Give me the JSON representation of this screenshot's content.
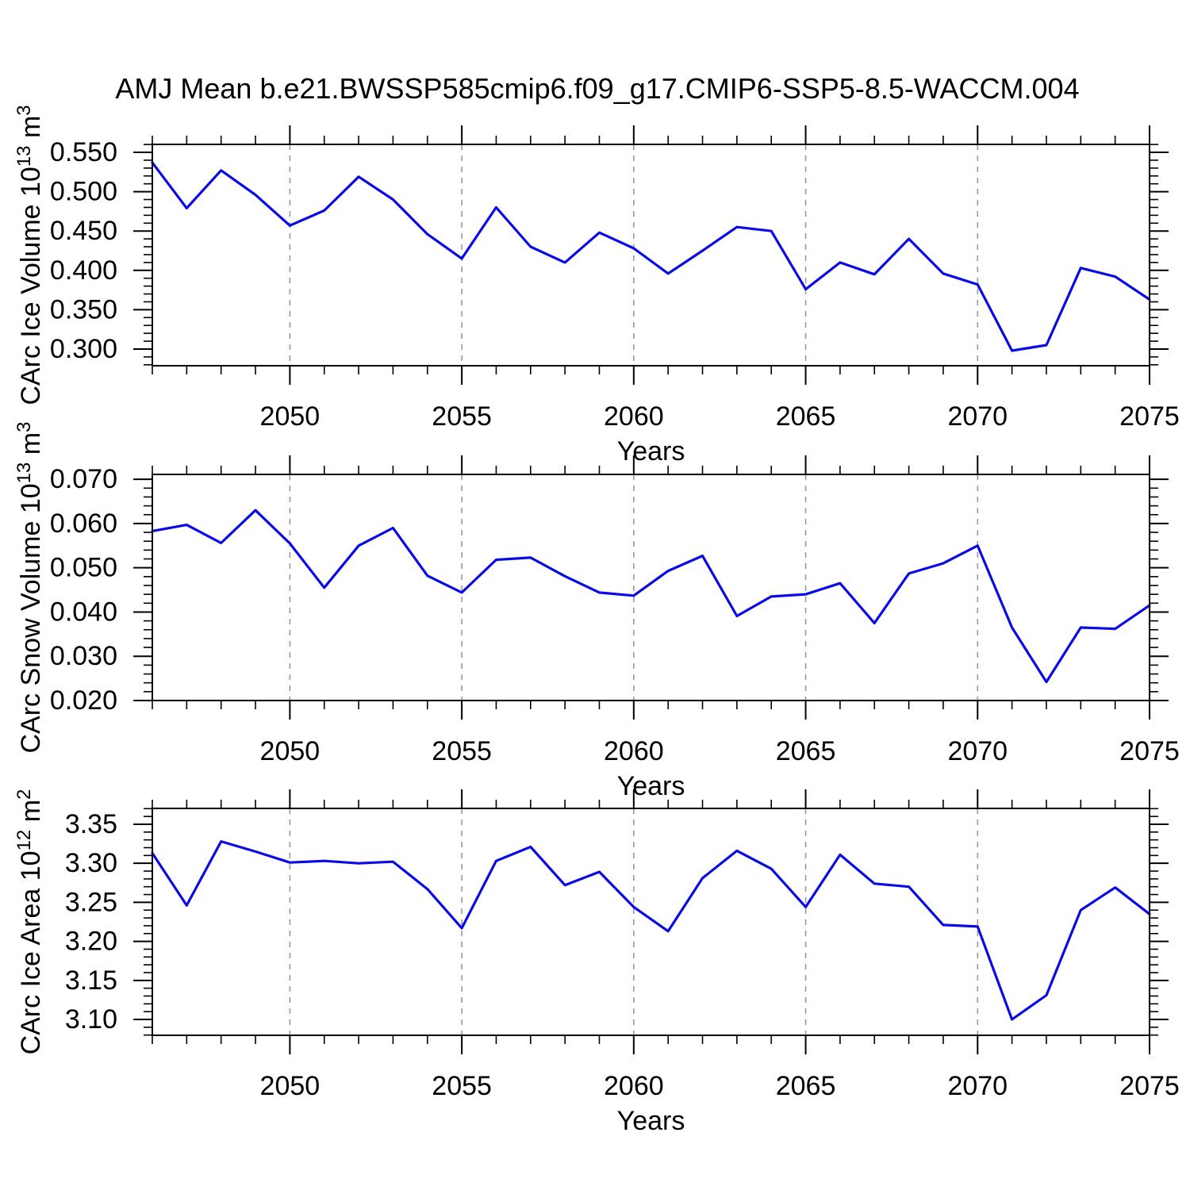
{
  "title": "AMJ Mean b.e21.BWSSP585cmip6.f09_g17.CMIP6-SSP5-8.5-WACCM.004",
  "chart_data": {
    "type": "line",
    "xlabel": "Years",
    "x": [
      2046,
      2047,
      2048,
      2049,
      2050,
      2051,
      2052,
      2053,
      2054,
      2055,
      2056,
      2057,
      2058,
      2059,
      2060,
      2061,
      2062,
      2063,
      2064,
      2065,
      2066,
      2067,
      2068,
      2069,
      2070,
      2071,
      2072,
      2073,
      2074,
      2075
    ],
    "xlim": [
      2046,
      2075
    ],
    "x_major_ticks": [
      2050,
      2055,
      2060,
      2065,
      2070,
      2075
    ],
    "x_minor_tick_step": 1,
    "x_gridlines": [
      2050,
      2055,
      2060,
      2065,
      2070
    ],
    "grid_style": "dashed",
    "line_color": "#0a0ae6",
    "grid_color": "#999999",
    "axis_color": "#000000",
    "legend": "none",
    "panels": [
      {
        "id": "carc-ice-volume",
        "ylabel": "CArc Ice Volume 10¹³ m³",
        "ylabel_parts": [
          [
            "CArc Ice Volume 10",
            false
          ],
          [
            "13",
            true
          ],
          [
            " m",
            false
          ],
          [
            "3",
            true
          ]
        ],
        "ylim": [
          0.2788,
          0.5601
        ],
        "yticks": [
          0.3,
          0.35,
          0.4,
          0.45,
          0.5,
          0.55
        ],
        "ytick_labels": [
          "0.300",
          "0.350",
          "0.400",
          "0.450",
          "0.500",
          "0.550"
        ],
        "y_minor_step": 0.01,
        "y_minor_range": [
          0.28,
          0.56
        ],
        "values": [
          0.537,
          0.479,
          0.527,
          0.496,
          0.457,
          0.476,
          0.519,
          0.49,
          0.446,
          0.415,
          0.48,
          0.43,
          0.41,
          0.448,
          0.428,
          0.396,
          0.425,
          0.455,
          0.45,
          0.376,
          0.41,
          0.395,
          0.44,
          0.396,
          0.382,
          0.298,
          0.305,
          0.403,
          0.392,
          0.363
        ]
      },
      {
        "id": "carc-snow-volume",
        "ylabel": "CArc Snow Volume 10¹³ m³",
        "ylabel_parts": [
          [
            "CArc Snow Volume 10",
            false
          ],
          [
            "13",
            true
          ],
          [
            " m",
            false
          ],
          [
            "3",
            true
          ]
        ],
        "ylim": [
          0.02,
          0.0711
        ],
        "yticks": [
          0.02,
          0.03,
          0.04,
          0.05,
          0.06,
          0.07
        ],
        "ytick_labels": [
          "0.020",
          "0.030",
          "0.040",
          "0.050",
          "0.060",
          "0.070"
        ],
        "y_minor_step": 0.002,
        "y_minor_range": [
          0.02,
          0.07
        ],
        "values": [
          0.0583,
          0.0597,
          0.0556,
          0.063,
          0.0555,
          0.0455,
          0.055,
          0.059,
          0.0482,
          0.0444,
          0.0518,
          0.0523,
          0.0481,
          0.0444,
          0.0437,
          0.0493,
          0.0527,
          0.0391,
          0.0435,
          0.044,
          0.0465,
          0.0375,
          0.0487,
          0.051,
          0.055,
          0.0365,
          0.0242,
          0.0365,
          0.0362,
          0.0415
        ]
      },
      {
        "id": "carc-ice-area",
        "ylabel": "CArc Ice Area 10¹² m²",
        "ylabel_parts": [
          [
            "CArc Ice Area 10",
            false
          ],
          [
            "12",
            true
          ],
          [
            " m",
            false
          ],
          [
            "2",
            true
          ]
        ],
        "ylim": [
          3.0797,
          3.3703
        ],
        "yticks": [
          3.1,
          3.15,
          3.2,
          3.25,
          3.3,
          3.35
        ],
        "ytick_labels": [
          "3.10",
          "3.15",
          "3.20",
          "3.25",
          "3.30",
          "3.35"
        ],
        "y_minor_step": 0.01,
        "y_minor_range": [
          3.08,
          3.37
        ],
        "values": [
          3.313,
          3.246,
          3.328,
          3.315,
          3.301,
          3.303,
          3.3,
          3.302,
          3.267,
          3.217,
          3.303,
          3.321,
          3.272,
          3.289,
          3.244,
          3.213,
          3.281,
          3.316,
          3.293,
          3.244,
          3.311,
          3.274,
          3.27,
          3.221,
          3.219,
          3.1,
          3.131,
          3.24,
          3.269,
          3.235
        ]
      }
    ]
  }
}
